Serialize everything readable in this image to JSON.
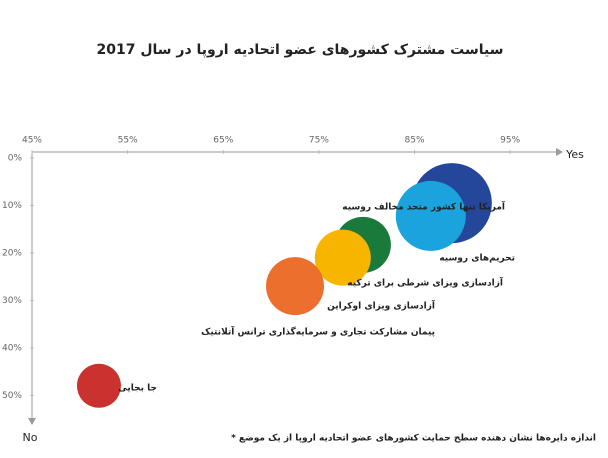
{
  "chart_data": {
    "type": "bubble",
    "title": "سیاست مشترک کشورهای عضو اتحادیه اروپا در سال 2017",
    "x_label": "Yes",
    "y_label": "No",
    "xlim": [
      45,
      100
    ],
    "ylim": [
      0,
      55
    ],
    "xticks": [
      {
        "value": 45,
        "label": "45%"
      },
      {
        "value": 55,
        "label": "55%"
      },
      {
        "value": 65,
        "label": "65%"
      },
      {
        "value": 75,
        "label": "75%"
      },
      {
        "value": 85,
        "label": "85%"
      },
      {
        "value": 95,
        "label": "95%"
      }
    ],
    "yticks": [
      {
        "value": 0,
        "label": "0%"
      },
      {
        "value": 10,
        "label": "10%"
      },
      {
        "value": 20,
        "label": "20%"
      },
      {
        "value": 30,
        "label": "30%"
      },
      {
        "value": 40,
        "label": "40%"
      },
      {
        "value": 50,
        "label": "50%"
      }
    ],
    "series": [
      {
        "name": "آمریکا تنها کشور متحد مخالف روسیه",
        "color": "#25479b",
        "x": [
          88.9
        ],
        "values": [
          9.5
        ],
        "sizes": [
          40
        ]
      },
      {
        "name": "تحریم‌های روسیه",
        "color": "#1aa3dc",
        "x": [
          86.7
        ],
        "values": [
          12.2
        ],
        "sizes": [
          35
        ]
      },
      {
        "name": "آزادسازی ویزای شرطی برای ترکیه",
        "color": "#1a7a3c",
        "x": [
          79.6
        ],
        "values": [
          18.3
        ],
        "sizes": [
          28
        ]
      },
      {
        "name": "آزادسازی ویزای اوکراین",
        "color": "#f7b500",
        "x": [
          77.5
        ],
        "values": [
          21
        ],
        "sizes": [
          28
        ]
      },
      {
        "name": "پیمان مشارکت تجاری و سرمایه‌گذاری ترانس آتلانتیک",
        "color": "#ec6f2d",
        "x": [
          72.5
        ],
        "values": [
          27
        ],
        "sizes": [
          29
        ]
      },
      {
        "name": "جا بجایی",
        "color": "#c9322f",
        "x": [
          52
        ],
        "values": [
          48
        ],
        "sizes": [
          22
        ]
      }
    ],
    "note": "* اندازه دایره‌ها نشان دهنده سطح حمایت کشورهای عضو اتحادیه اروپا از یک موضع"
  }
}
